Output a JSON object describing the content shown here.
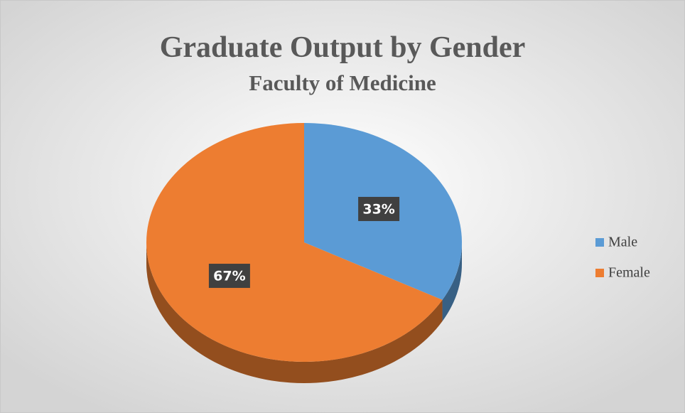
{
  "chart_data": {
    "type": "pie",
    "title": "Graduate Output by Gender",
    "subtitle": "Faculty of Medicine",
    "categories": [
      "Male",
      "Female"
    ],
    "values": [
      33,
      67
    ],
    "value_labels": [
      "33%",
      "67%"
    ],
    "colors": [
      "#5b9bd5",
      "#ed7d31"
    ],
    "legend": "right"
  }
}
